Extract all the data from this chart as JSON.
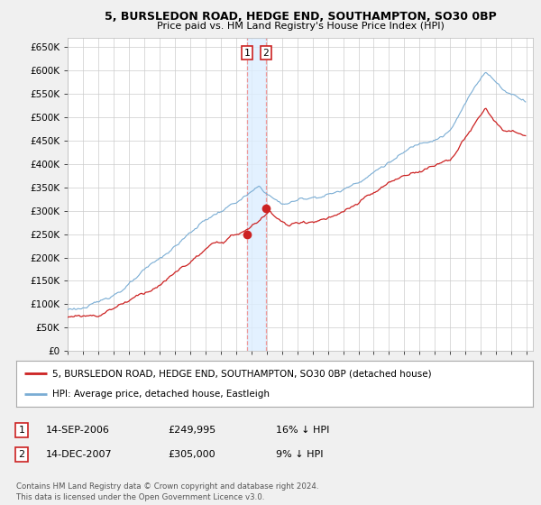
{
  "title_line1": "5, BURSLEDON ROAD, HEDGE END, SOUTHAMPTON, SO30 0BP",
  "title_line2": "Price paid vs. HM Land Registry's House Price Index (HPI)",
  "ylabel_ticks": [
    "£0",
    "£50K",
    "£100K",
    "£150K",
    "£200K",
    "£250K",
    "£300K",
    "£350K",
    "£400K",
    "£450K",
    "£500K",
    "£550K",
    "£600K",
    "£650K"
  ],
  "ytick_values": [
    0,
    50000,
    100000,
    150000,
    200000,
    250000,
    300000,
    350000,
    400000,
    450000,
    500000,
    550000,
    600000,
    650000
  ],
  "xlim_start": 1995.0,
  "xlim_end": 2025.4,
  "ylim": [
    0,
    670000
  ],
  "transaction1_date": 2006.71,
  "transaction1_price": 249995,
  "transaction2_date": 2007.96,
  "transaction2_price": 305000,
  "legend_line1": "5, BURSLEDON ROAD, HEDGE END, SOUTHAMPTON, SO30 0BP (detached house)",
  "legend_line2": "HPI: Average price, detached house, Eastleigh",
  "table_row1": [
    "1",
    "14-SEP-2006",
    "£249,995",
    "16% ↓ HPI"
  ],
  "table_row2": [
    "2",
    "14-DEC-2007",
    "£305,000",
    "9% ↓ HPI"
  ],
  "footer": "Contains HM Land Registry data © Crown copyright and database right 2024.\nThis data is licensed under the Open Government Licence v3.0.",
  "hpi_color": "#7aadd4",
  "price_color": "#cc2222",
  "bg_color": "#f0f0f0",
  "plot_bg_color": "#ffffff",
  "grid_color": "#cccccc",
  "vline_color": "#ee9999",
  "shade_color": "#ddeeff",
  "box_edge_color": "#cc2222"
}
